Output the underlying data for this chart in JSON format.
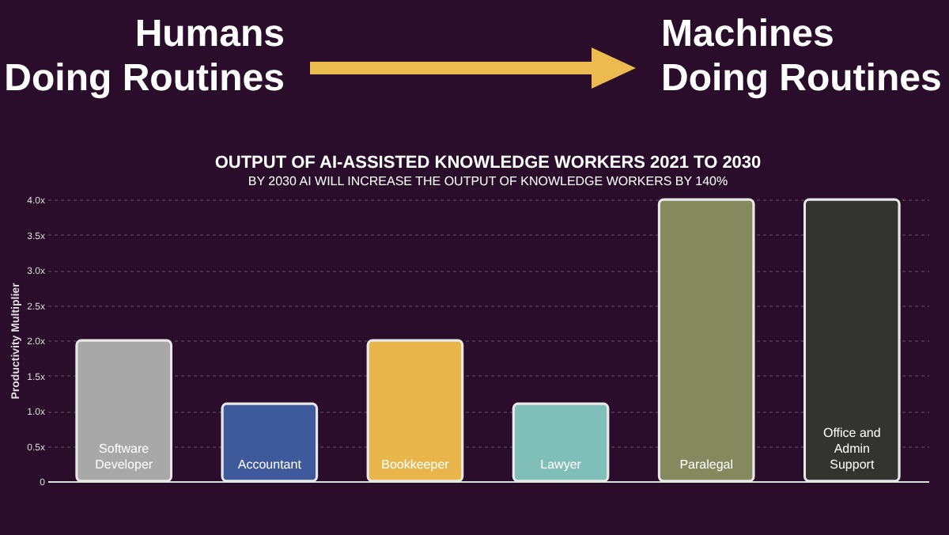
{
  "chart_data": {
    "type": "bar",
    "title": "OUTPUT OF AI-ASSISTED KNOWLEDGE WORKERS 2021 TO 2030",
    "subtitle": "BY 2030 AI WILL INCREASE THE OUTPUT OF KNOWLEDGE WORKERS BY 140%",
    "ylabel": "Productivity Multiplier",
    "annotations": [
      "Humans\nDoing Routines",
      "Machines\nDoing Routines"
    ],
    "categories": [
      "Software Developer",
      "Accountant",
      "Bookkeeper",
      "Lawyer",
      "Paralegal",
      "Office and Admin Support"
    ],
    "values": [
      2.0,
      1.1,
      2.0,
      1.1,
      4.0,
      4.0
    ],
    "colors": [
      "#a8a8a8",
      "#3f5a9a",
      "#e8b64a",
      "#7fbfb8",
      "#858a5e",
      "#333330"
    ],
    "ylim": [
      0,
      4
    ],
    "yticks": [
      {
        "value": 0,
        "label": "0"
      },
      {
        "value": 0.5,
        "label": "0.5x"
      },
      {
        "value": 1,
        "label": "1.0x"
      },
      {
        "value": 1.5,
        "label": "1.5x"
      },
      {
        "value": 2,
        "label": "2.0x"
      },
      {
        "value": 2.5,
        "label": "2.5x"
      },
      {
        "value": 3,
        "label": "3.0x"
      },
      {
        "value": 3.5,
        "label": "3.5x"
      },
      {
        "value": 4,
        "label": "4.0x"
      }
    ],
    "grid": "y",
    "legend": false
  }
}
